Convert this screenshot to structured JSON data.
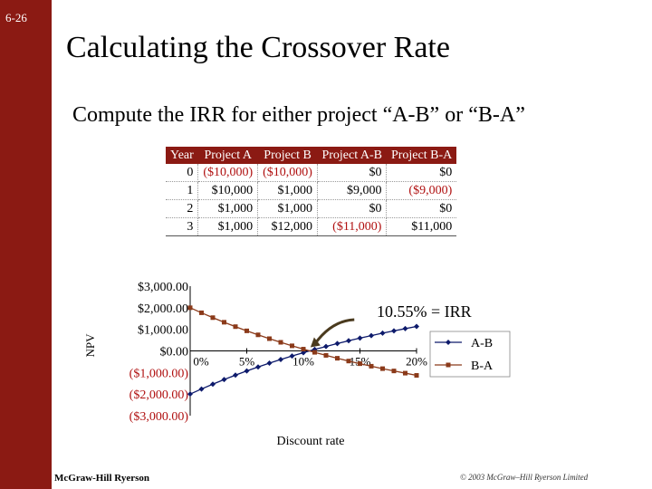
{
  "slide": {
    "number": "6-26",
    "title": "Calculating the Crossover Rate",
    "subtitle": "Compute the IRR for either project “A-B” or “B-A”",
    "footer_left": "McGraw-Hill Ryerson",
    "footer_right": "© 2003 McGraw–Hill Ryerson Limited"
  },
  "table": {
    "headers": [
      "Year",
      "Project A",
      "Project B",
      "Project A-B",
      "Project B-A"
    ],
    "rows": [
      [
        "0",
        "($10,000)",
        "($10,000)",
        "$0",
        "$0"
      ],
      [
        "1",
        "$10,000",
        "$1,000",
        "$9,000",
        "($9,000)"
      ],
      [
        "2",
        "$1,000",
        "$1,000",
        "$0",
        "$0"
      ],
      [
        "3",
        "$1,000",
        "$12,000",
        "($11,000)",
        "$11,000"
      ]
    ]
  },
  "chart_data": {
    "type": "line",
    "title": "",
    "xlabel": "Discount rate",
    "ylabel": "NPV",
    "ylim": [
      -3000,
      3000
    ],
    "xlim": [
      0,
      0.2
    ],
    "y_ticks": [
      "$3,000.00",
      "$2,000.00",
      "$1,000.00",
      "$0.00",
      "($1,000.00)",
      "($2,000.00)",
      "($3,000.00)"
    ],
    "y_tick_values": [
      3000,
      2000,
      1000,
      0,
      -1000,
      -2000,
      -3000
    ],
    "x_ticks": [
      "0%",
      "5%",
      "10%",
      "15%",
      "20%"
    ],
    "x_tick_values": [
      0,
      0.05,
      0.1,
      0.15,
      0.2
    ],
    "x": [
      0,
      0.01,
      0.02,
      0.03,
      0.04,
      0.05,
      0.06,
      0.07,
      0.08,
      0.09,
      0.1,
      0.11,
      0.12,
      0.13,
      0.14,
      0.15,
      0.16,
      0.17,
      0.18,
      0.19,
      0.2
    ],
    "series": [
      {
        "name": "A-B",
        "color": "#0d1a6b",
        "marker": "diamond",
        "values": [
          -2000,
          -1766,
          -1541,
          -1328,
          -1124,
          -929,
          -744,
          -567,
          -398,
          -236,
          -82,
          66,
          207,
          341,
          470,
          592,
          709,
          822,
          929,
          1031,
          1134
        ]
      },
      {
        "name": "B-A",
        "color": "#8b3a1a",
        "marker": "square",
        "values": [
          2000,
          1766,
          1541,
          1328,
          1124,
          929,
          744,
          567,
          398,
          236,
          82,
          -66,
          -207,
          -341,
          -470,
          -592,
          -709,
          -822,
          -929,
          -1031,
          -1134
        ]
      }
    ],
    "legend_position": "right",
    "annotation": "10.55% = IRR",
    "annotation_x": 0.1055
  }
}
